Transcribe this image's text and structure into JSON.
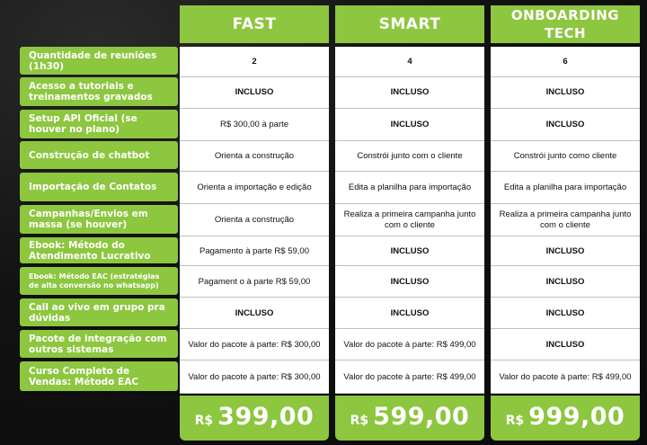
{
  "rows": [
    {
      "label": "Quantidade de reuniões (1h30)",
      "small": false
    },
    {
      "label": "Acesso a tutoriais e treinamentos gravados",
      "small": false
    },
    {
      "label": "Setup API Oficial (se houver no plano)",
      "small": false
    },
    {
      "label": "Construção de chatbot",
      "small": false
    },
    {
      "label": "Importação de Contatos",
      "small": false
    },
    {
      "label": "Campanhas/Envios em massa (se houver)",
      "small": false
    },
    {
      "label": "Ebook: Método do Atendimento Lucrativo",
      "small": false
    },
    {
      "label": "Ebook: Método EAC (estratégias de alta conversão no whatsapp)",
      "small": true
    },
    {
      "label": "Call ao vivo em grupo pra dúvidas",
      "small": false
    },
    {
      "label": "Pacote de integração com outros sistemas",
      "small": false
    },
    {
      "label": "Curso Completo de Vendas: Método EAC",
      "small": false
    }
  ],
  "plans": [
    {
      "name": "FAST",
      "currency": "R$",
      "price": "399,00",
      "cells": [
        "2",
        "INCLUSO",
        "R$ 300,00 à parte",
        "Orienta a construção",
        "Orienta a importação e edição",
        "Orienta a construção",
        "Pagamento à parte R$ 59,00",
        "Pagament o à parte R$ 59,00",
        "INCLUSO",
        "Valor do pacote à parte: R$ 300,00",
        "Valor do pacote à parte: R$ 300,00"
      ]
    },
    {
      "name": "SMART",
      "currency": "R$",
      "price": "599,00",
      "cells": [
        "4",
        "INCLUSO",
        "INCLUSO",
        "Constrói junto com o cliente",
        "Edita a planilha para importação",
        "Realiza a primeira campanha junto com o cliente",
        "INCLUSO",
        "INCLUSO",
        "INCLUSO",
        "Valor do pacote à parte: R$ 499,00",
        "Valor do pacote à parte: R$ 499,00"
      ]
    },
    {
      "name": "ONBOARDING TECH",
      "currency": "R$",
      "price": "999,00",
      "cells": [
        "6",
        "INCLUSO",
        "INCLUSO",
        "Constrói junto como cliente",
        "Edita a planilha para importação",
        "Realiza a primeira campanha junto com o cliente",
        "INCLUSO",
        "INCLUSO",
        "INCLUSO",
        "INCLUSO",
        "Valor do pacote à parte: R$ 499,00"
      ]
    }
  ]
}
